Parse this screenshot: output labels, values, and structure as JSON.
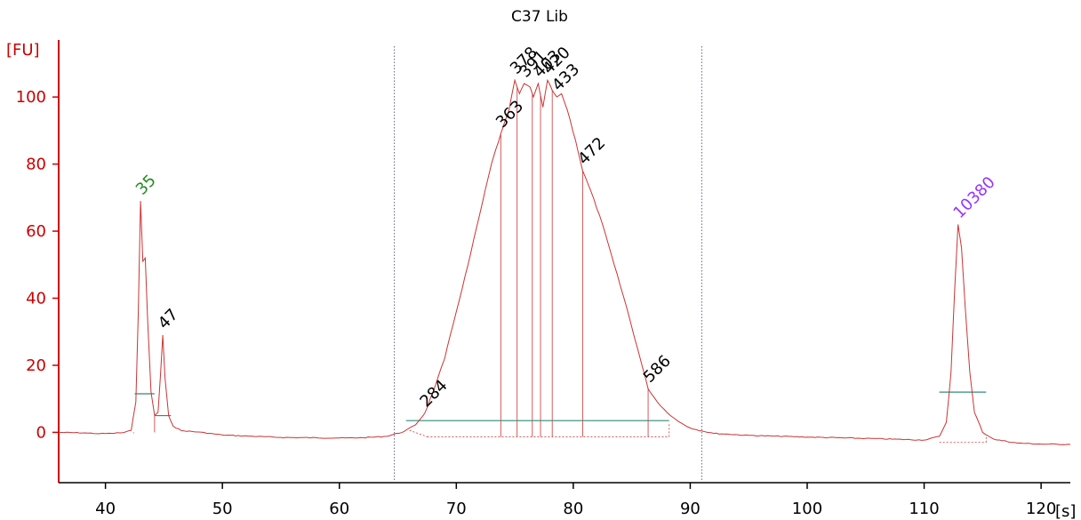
{
  "chart_data": {
    "type": "line",
    "title": "C37 Lib",
    "ylabel": "[FU]",
    "xlabel": "[s]",
    "xlim": [
      36,
      122.5
    ],
    "ylim": [
      -15,
      117
    ],
    "xticks": [
      40,
      50,
      60,
      70,
      80,
      90,
      100,
      110,
      120
    ],
    "yticks": [
      0,
      20,
      40,
      60,
      80,
      100
    ],
    "grid": false,
    "colors": {
      "trace": "#cc3333",
      "axis": "#cc0000",
      "baseline": "#2e8b7a",
      "marker_line": "#444488",
      "lower_marker": "#228b22",
      "upper_marker": "#9933ff",
      "peak_label": "#000000"
    },
    "region_markers_x": [
      64.7,
      91.0
    ],
    "series": [
      {
        "points": [
          [
            36,
            0.0
          ],
          [
            38.5,
            -0.2
          ],
          [
            39.5,
            -0.4
          ],
          [
            40.5,
            -0.3
          ],
          [
            41.5,
            -0.1
          ],
          [
            42.2,
            0.6
          ],
          [
            42.6,
            9
          ],
          [
            42.8,
            35
          ],
          [
            43.0,
            69
          ],
          [
            43.2,
            51
          ],
          [
            43.4,
            52
          ],
          [
            43.6,
            34
          ],
          [
            43.9,
            12
          ],
          [
            44.2,
            5
          ],
          [
            44.5,
            6
          ],
          [
            44.7,
            17
          ],
          [
            44.9,
            29
          ],
          [
            45.1,
            16
          ],
          [
            45.4,
            5
          ],
          [
            45.8,
            1.8
          ],
          [
            46.5,
            0.5
          ],
          [
            48,
            0.1
          ],
          [
            50,
            -0.8
          ],
          [
            55,
            -1.5
          ],
          [
            60,
            -1.7
          ],
          [
            62,
            -1.6
          ],
          [
            64,
            -1.2
          ],
          [
            65.5,
            0.2
          ],
          [
            66.5,
            2.2
          ],
          [
            67.3,
            5.7
          ],
          [
            68,
            12
          ],
          [
            69,
            22
          ],
          [
            70,
            36
          ],
          [
            71,
            50
          ],
          [
            72,
            65
          ],
          [
            73,
            80
          ],
          [
            73.8,
            89
          ],
          [
            74.5,
            96
          ],
          [
            75.0,
            105
          ],
          [
            75.4,
            101
          ],
          [
            75.8,
            104
          ],
          [
            76.3,
            103
          ],
          [
            76.6,
            100
          ],
          [
            77.0,
            104
          ],
          [
            77.4,
            97
          ],
          [
            77.8,
            105
          ],
          [
            78.2,
            102
          ],
          [
            78.6,
            100
          ],
          [
            79.0,
            101
          ],
          [
            79.5,
            96
          ],
          [
            80.2,
            87
          ],
          [
            80.8,
            78
          ],
          [
            81.5,
            72
          ],
          [
            82.5,
            62
          ],
          [
            83.5,
            50
          ],
          [
            84.5,
            38
          ],
          [
            85.5,
            25
          ],
          [
            86.4,
            13
          ],
          [
            87.2,
            9
          ],
          [
            88,
            6
          ],
          [
            89,
            3.2
          ],
          [
            90,
            1.3
          ],
          [
            91,
            0.4
          ],
          [
            92,
            -0.3
          ],
          [
            95,
            -0.9
          ],
          [
            100,
            -1.4
          ],
          [
            105,
            -1.8
          ],
          [
            110,
            -2.3
          ],
          [
            111.3,
            -1.2
          ],
          [
            111.9,
            3
          ],
          [
            112.3,
            18
          ],
          [
            112.6,
            42
          ],
          [
            112.9,
            62
          ],
          [
            113.2,
            55
          ],
          [
            113.5,
            38
          ],
          [
            113.9,
            18
          ],
          [
            114.3,
            6
          ],
          [
            115,
            0
          ],
          [
            116,
            -2.1
          ],
          [
            118,
            -3.2
          ],
          [
            120,
            -3.5
          ],
          [
            122.5,
            -3.6
          ]
        ]
      }
    ],
    "peaks": [
      {
        "label": "35",
        "x": 43.0,
        "y": 69,
        "kind": "lower_marker"
      },
      {
        "label": "47",
        "x": 44.9,
        "y": 29,
        "kind": "peak"
      },
      {
        "label": "284",
        "x": 67.3,
        "y": 5.7,
        "kind": "peak"
      },
      {
        "label": "363",
        "x": 73.8,
        "y": 89,
        "kind": "peak"
      },
      {
        "label": "378",
        "x": 75.0,
        "y": 105,
        "kind": "peak"
      },
      {
        "label": "391",
        "x": 75.8,
        "y": 104,
        "kind": "peak"
      },
      {
        "label": "403",
        "x": 77.0,
        "y": 104,
        "kind": "peak"
      },
      {
        "label": "420",
        "x": 77.8,
        "y": 105,
        "kind": "peak"
      },
      {
        "label": "433",
        "x": 78.6,
        "y": 100,
        "kind": "peak"
      },
      {
        "label": "472",
        "x": 80.8,
        "y": 78,
        "kind": "peak"
      },
      {
        "label": "586",
        "x": 86.4,
        "y": 13,
        "kind": "peak"
      },
      {
        "label": "10380",
        "x": 112.9,
        "y": 62,
        "kind": "upper_marker"
      }
    ],
    "peak_droplines": [
      73.8,
      75.2,
      76.5,
      77.2,
      78.2,
      80.8,
      86.4
    ],
    "baselines": [
      {
        "x1": 42.5,
        "x2": 44.2,
        "y": 11.5
      },
      {
        "x1": 44.2,
        "x2": 45.6,
        "y": 5.0
      },
      {
        "x1": 65.7,
        "x2": 88.2,
        "y": 3.5
      },
      {
        "x1": 111.3,
        "x2": 115.3,
        "y": 12.0
      }
    ]
  }
}
